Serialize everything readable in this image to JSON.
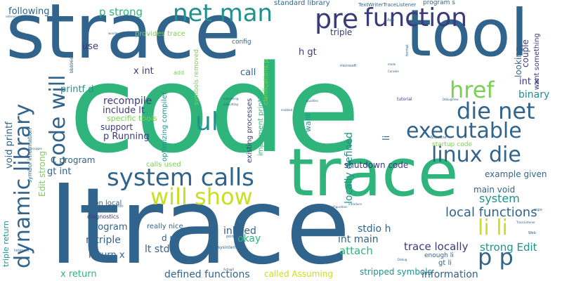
{
  "palette": {
    "dark_navy": "#3b3b7c",
    "blue": "#2f6e97",
    "slate": "#31648c",
    "teal": "#21918c",
    "green": "#2fb47c",
    "lime": "#7ad151",
    "yellow": "#c8e020",
    "purple": "#482878"
  },
  "words": [
    "code",
    "trace",
    "strace",
    "ltrace",
    "tool",
    "system calls",
    "dynamic library",
    "function",
    "net man",
    "pre",
    "code will",
    "will show",
    "die net",
    "executable",
    "href",
    "linux die",
    "ul",
    "li li",
    "p p",
    "local functions",
    "strong Edit",
    "locally defined",
    "trace locally",
    "defined functions",
    "stripped symbols",
    "information",
    "called Assuming",
    "attach",
    "int main",
    "stdio h",
    "shutdown code",
    "main void",
    "example given",
    "system",
    "binary",
    "int x",
    "couple",
    "want something",
    "looking",
    "triple",
    "p strong",
    "following C",
    "use",
    "x int",
    "printf d",
    "recompile",
    "include lt",
    "support",
    "p Running",
    "C program",
    "gt int",
    "Edit strong",
    "void printf",
    "program",
    "n triple",
    "return x",
    "x return",
    "lt stdio",
    "inlined",
    "okay",
    "non local",
    "diagnostics",
    "really nice",
    "d n",
    "calls used",
    "specific tools",
    "optimizing compiler",
    "symbols removed",
    "provides trace",
    "config",
    "standard library",
    "TextWriterTraceListener",
    "program s",
    "clarifications p",
    "h gt",
    "call",
    "add",
    "existing processes",
    "implement printf",
    "startup code",
    "want",
    "li",
    "gt li",
    "enough li",
    "symbol information",
    "triple return",
    "bb896647",
    "microsoft",
    "tutorial",
    "format",
    "aspx",
    "Web",
    "sysinternals",
    "application",
    "listeners",
    "WriteLine",
    "App",
    "qualities",
    "everything",
    "Debug",
    "TraceListener",
    "DebugView",
    "mode",
    "wonder",
    "Console",
    "configuration",
    "introduce",
    "enabled",
    "pointed",
    "outputting",
    "ActiveX",
    "messages",
    "reference"
  ]
}
